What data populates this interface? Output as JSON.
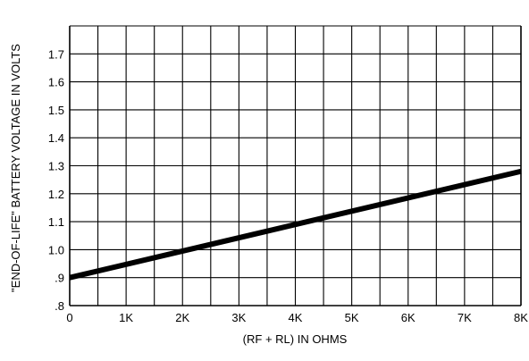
{
  "chart_data": {
    "type": "line",
    "title": "",
    "xlabel": "(RF + RL) IN OHMS",
    "ylabel": "\"END-OF-LIFE\" BATTERY VOLTAGE IN VOLTS",
    "xlim": [
      0,
      8000
    ],
    "ylim": [
      0.8,
      1.8
    ],
    "x_ticks": [
      {
        "value": 0,
        "label": "0"
      },
      {
        "value": 1000,
        "label": "1K"
      },
      {
        "value": 2000,
        "label": "2K"
      },
      {
        "value": 3000,
        "label": "3K"
      },
      {
        "value": 4000,
        "label": "4K"
      },
      {
        "value": 5000,
        "label": "5K"
      },
      {
        "value": 6000,
        "label": "6K"
      },
      {
        "value": 7000,
        "label": "7K"
      },
      {
        "value": 8000,
        "label": "8K"
      }
    ],
    "y_ticks": [
      {
        "value": 0.8,
        "label": ".8"
      },
      {
        "value": 0.9,
        "label": ".9"
      },
      {
        "value": 1.0,
        "label": "1.0"
      },
      {
        "value": 1.1,
        "label": "1.1"
      },
      {
        "value": 1.2,
        "label": "1.2"
      },
      {
        "value": 1.3,
        "label": "1.3"
      },
      {
        "value": 1.4,
        "label": "1.4"
      },
      {
        "value": 1.5,
        "label": "1.5"
      },
      {
        "value": 1.6,
        "label": "1.6"
      },
      {
        "value": 1.7,
        "label": "1.7"
      }
    ],
    "x_minor_step": 500,
    "y_minor_step": 0.1,
    "grid": true,
    "series": [
      {
        "x": [
          0,
          8000
        ],
        "y": [
          0.9,
          1.28
        ],
        "color": "#000000"
      }
    ]
  }
}
